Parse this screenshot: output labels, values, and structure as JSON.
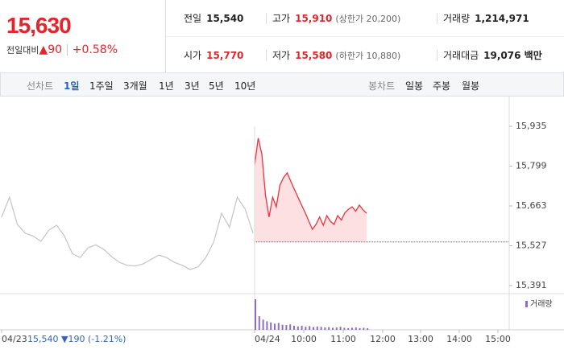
{
  "header": {
    "price": "15,630",
    "change_label": "전일대비",
    "change": "▲90",
    "change_pct": "+0.58%"
  },
  "stats": [
    [
      {
        "label": "전일",
        "value": "15,540"
      },
      {
        "label": "고가",
        "value": "15,910",
        "note": "(상한가 20,200)"
      },
      {
        "label": "거래량",
        "value": "1,214,971"
      }
    ],
    [
      {
        "label": "시가",
        "value": "15,770"
      },
      {
        "label": "저가",
        "value": "15,580",
        "note": "(하한가 10,880)"
      },
      {
        "label": "거래대금",
        "value": "19,076 백만"
      }
    ]
  ],
  "tabs": {
    "line_label": "선차트",
    "line": [
      "1일",
      "1주일",
      "3개월",
      "1년",
      "3년",
      "5년",
      "10년"
    ],
    "candle_label": "봉차트",
    "candle": [
      "일봉",
      "주봉",
      "월봉"
    ]
  },
  "chart_data": {
    "type": "line",
    "x_labels": [
      "04/23",
      "04/24",
      "10:00",
      "11:00",
      "12:00",
      "13:00",
      "14:00",
      "15:00"
    ],
    "prev_summary": "15,540 ▼190 (-1.21%)",
    "series": [
      {
        "color": "#c8c8c8",
        "values": [
          15625,
          15693,
          15600,
          15570,
          15560,
          15542,
          15580,
          15597,
          15560,
          15500,
          15487,
          15520,
          15530,
          15515,
          15490,
          15470,
          15460,
          15458,
          15465,
          15480,
          15495,
          15487,
          15470,
          15460,
          15446,
          15455,
          15487,
          15540,
          15638,
          15590,
          15693,
          15652,
          15570
        ]
      },
      {
        "color": "#f0323c",
        "values": [
          15803,
          15895,
          15840,
          15700,
          15625,
          15693,
          15660,
          15734,
          15760,
          15776,
          15748,
          15720,
          15693,
          15666,
          15640,
          15611,
          15583,
          15600,
          15625,
          15597,
          15630,
          15610,
          15600,
          15630,
          15615,
          15640,
          15652,
          15660,
          15645,
          15666,
          15650,
          15638
        ]
      }
    ],
    "reference_line": 15540,
    "ylim": [
      15391,
      15935
    ],
    "yticks": [
      {
        "value": 15391,
        "label": "15,391"
      },
      {
        "value": 15527,
        "label": "15,527"
      },
      {
        "value": 15663,
        "label": "15,663"
      },
      {
        "value": 15799,
        "label": "15,799"
      },
      {
        "value": 15935,
        "label": "15,935"
      }
    ],
    "volume": {
      "name": "거래량",
      "color": "#8a6fc4",
      "values": [
        90,
        40,
        30,
        25,
        22,
        18,
        20,
        15,
        14,
        16,
        12,
        10,
        12,
        9,
        11,
        8,
        10,
        9,
        7,
        8,
        6,
        7,
        9,
        6,
        5,
        6,
        7,
        5,
        6,
        5
      ]
    }
  }
}
